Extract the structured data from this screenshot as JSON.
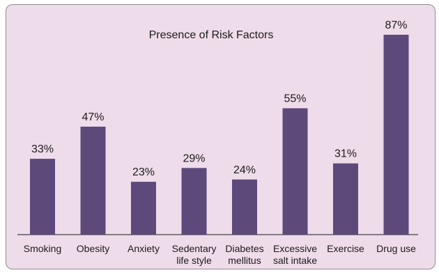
{
  "chart_data": {
    "type": "bar",
    "title": "Presence of Risk Factors",
    "categories": [
      [
        "Smoking"
      ],
      [
        "Obesity"
      ],
      [
        "Anxiety"
      ],
      [
        "Sedentary",
        "life style"
      ],
      [
        "Diabetes",
        "mellitus"
      ],
      [
        "Excessive",
        "salt intake"
      ],
      [
        "Exercise"
      ],
      [
        "Drug use"
      ]
    ],
    "values": [
      33,
      47,
      23,
      29,
      24,
      55,
      31,
      87
    ],
    "value_labels": [
      "33%",
      "47%",
      "23%",
      "29%",
      "24%",
      "55%",
      "31%",
      "87%"
    ],
    "ylim": [
      0,
      100
    ],
    "grid": false,
    "bar_color": "#5d497a",
    "background_color": "#efdcea"
  }
}
